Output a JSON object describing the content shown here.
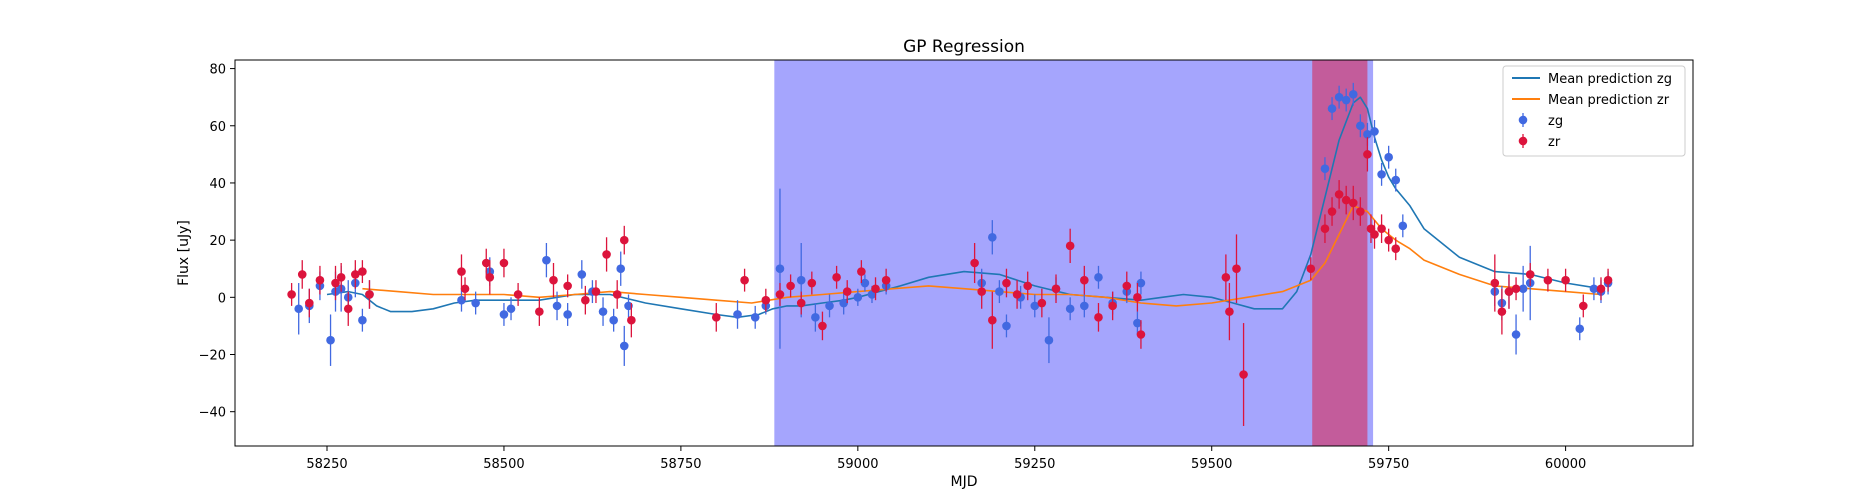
{
  "chart_data": {
    "type": "scatter",
    "title": "GP Regression",
    "xlabel": "MJD",
    "ylabel": "Flux [uJy]",
    "xlim": [
      58120,
      60180
    ],
    "ylim": [
      -52,
      83
    ],
    "xticks": [
      58250,
      58500,
      58750,
      59000,
      59250,
      59500,
      59750,
      60000
    ],
    "yticks": [
      -40,
      -20,
      0,
      20,
      40,
      60,
      80
    ],
    "grid": false,
    "legend_position": "top-right",
    "shaded_regions": [
      {
        "x_start": 58882,
        "x_end": 59728,
        "color": "#a5a5fd"
      },
      {
        "x_start": 59642,
        "x_end": 59720,
        "color": "#c35c9b"
      }
    ],
    "legend": [
      {
        "label": "Mean prediction zg",
        "kind": "line",
        "color": "#1f77b4"
      },
      {
        "label": "Mean prediction zr",
        "kind": "line",
        "color": "#ff7f0e"
      },
      {
        "label": "zg",
        "kind": "errorbar",
        "color": "#4169e1"
      },
      {
        "label": "zr",
        "kind": "errorbar",
        "color": "#dc143c"
      }
    ],
    "series": [
      {
        "name": "Mean prediction zg",
        "kind": "line",
        "color": "#1f77b4",
        "x": [
          58250,
          58280,
          58300,
          58320,
          58340,
          58370,
          58400,
          58430,
          58460,
          58500,
          58550,
          58600,
          58650,
          58700,
          58750,
          58800,
          58830,
          58860,
          58880,
          58900,
          58920,
          58950,
          58980,
          59000,
          59030,
          59060,
          59100,
          59150,
          59200,
          59250,
          59300,
          59350,
          59400,
          59430,
          59460,
          59500,
          59530,
          59560,
          59600,
          59620,
          59640,
          59660,
          59680,
          59700,
          59710,
          59720,
          59730,
          59740,
          59750,
          59760,
          59780,
          59800,
          59850,
          59900,
          59950,
          60000,
          60050
        ],
        "y": [
          1,
          2,
          1,
          -3,
          -5,
          -5,
          -4,
          -2,
          -1,
          -1,
          -1,
          1,
          1,
          -2,
          -4,
          -6,
          -7,
          -6,
          -4,
          -3,
          -3,
          -2,
          -1,
          0,
          2,
          4,
          7,
          9,
          8,
          4,
          1,
          0,
          -1,
          0,
          1,
          0,
          -2,
          -4,
          -4,
          2,
          15,
          35,
          55,
          68,
          70,
          66,
          56,
          48,
          42,
          38,
          32,
          24,
          14,
          9,
          8,
          5,
          3
        ]
      },
      {
        "name": "Mean prediction zr",
        "kind": "line",
        "color": "#ff7f0e",
        "x": [
          58300,
          58350,
          58400,
          58450,
          58500,
          58550,
          58600,
          58650,
          58700,
          58750,
          58800,
          58850,
          58900,
          58950,
          59000,
          59050,
          59100,
          59150,
          59200,
          59250,
          59300,
          59350,
          59400,
          59450,
          59500,
          59550,
          59600,
          59640,
          59660,
          59680,
          59700,
          59720,
          59740,
          59760,
          59780,
          59800,
          59850,
          59900,
          59950,
          60000,
          60050
        ],
        "y": [
          3,
          2,
          1,
          1,
          1,
          0,
          1,
          2,
          1,
          0,
          -1,
          -2,
          0,
          1,
          2,
          3,
          4,
          3,
          2,
          1,
          1,
          0,
          -2,
          -3,
          -2,
          0,
          2,
          6,
          12,
          22,
          32,
          30,
          24,
          20,
          17,
          13,
          8,
          4,
          3,
          2,
          1
        ]
      },
      {
        "name": "zg",
        "kind": "errorbar",
        "color": "#4169e1",
        "x": [
          58210,
          58225,
          58240,
          58255,
          58262,
          58270,
          58280,
          58290,
          58300,
          58310,
          58440,
          58460,
          58480,
          58500,
          58510,
          58560,
          58575,
          58590,
          58610,
          58625,
          58640,
          58655,
          58665,
          58670,
          58676,
          58830,
          58855,
          58870,
          58890,
          58920,
          58940,
          58960,
          58980,
          59000,
          59010,
          59020,
          59040,
          59175,
          59190,
          59200,
          59210,
          59230,
          59250,
          59270,
          59280,
          59300,
          59320,
          59340,
          59360,
          59380,
          59395,
          59400,
          59660,
          59670,
          59680,
          59690,
          59700,
          59710,
          59720,
          59730,
          59740,
          59750,
          59760,
          59770,
          59900,
          59910,
          59920,
          59930,
          59940,
          59950,
          60020,
          60040,
          60050,
          60060
        ],
        "y": [
          -4,
          -3,
          4,
          -15,
          2,
          3,
          0,
          5,
          -8,
          1,
          -1,
          -2,
          9,
          -6,
          -4,
          13,
          -3,
          -6,
          8,
          2,
          -5,
          -8,
          10,
          -17,
          -3,
          -6,
          -7,
          -3,
          10,
          6,
          -7,
          -3,
          -2,
          0,
          5,
          1,
          4,
          5,
          21,
          2,
          -10,
          0,
          -3,
          -15,
          3,
          -4,
          -3,
          7,
          -2,
          2,
          -9,
          5,
          45,
          66,
          70,
          69,
          71,
          60,
          57,
          58,
          43,
          49,
          41,
          25,
          2,
          -2,
          2,
          -13,
          3,
          5,
          -11,
          3,
          2,
          5
        ],
        "err": [
          9,
          6,
          5,
          9,
          7,
          8,
          6,
          5,
          4,
          5,
          4,
          4,
          5,
          4,
          4,
          6,
          5,
          4,
          5,
          4,
          5,
          4,
          6,
          7,
          4,
          5,
          4,
          3,
          28,
          13,
          5,
          4,
          4,
          3,
          3,
          3,
          3,
          5,
          6,
          4,
          4,
          4,
          4,
          8,
          4,
          4,
          4,
          4,
          4,
          4,
          4,
          4,
          4,
          4,
          4,
          4,
          4,
          4,
          4,
          4,
          4,
          4,
          4,
          4,
          5,
          6,
          6,
          7,
          8,
          13,
          4,
          4,
          4,
          4
        ]
      },
      {
        "name": "zr",
        "kind": "errorbar",
        "color": "#dc143c",
        "x": [
          58200,
          58215,
          58225,
          58240,
          58262,
          58270,
          58280,
          58290,
          58300,
          58310,
          58440,
          58445,
          58475,
          58480,
          58500,
          58520,
          58550,
          58570,
          58590,
          58615,
          58630,
          58645,
          58660,
          58670,
          58680,
          58800,
          58840,
          58870,
          58890,
          58905,
          58920,
          58935,
          58950,
          58970,
          58985,
          59005,
          59025,
          59040,
          59165,
          59175,
          59190,
          59210,
          59225,
          59240,
          59260,
          59280,
          59300,
          59320,
          59340,
          59360,
          59380,
          59395,
          59400,
          59520,
          59525,
          59535,
          59545,
          59640,
          59660,
          59670,
          59680,
          59690,
          59700,
          59710,
          59720,
          59725,
          59730,
          59740,
          59750,
          59760,
          59900,
          59910,
          59920,
          59930,
          59950,
          59975,
          60000,
          60025,
          60050,
          60060
        ],
        "y": [
          1,
          8,
          -2,
          6,
          5,
          7,
          -4,
          8,
          9,
          1,
          9,
          3,
          12,
          7,
          12,
          1,
          -5,
          6,
          4,
          -1,
          2,
          15,
          1,
          20,
          -8,
          -7,
          6,
          -1,
          1,
          4,
          -2,
          5,
          -10,
          7,
          2,
          9,
          3,
          6,
          12,
          2,
          -8,
          5,
          1,
          4,
          -2,
          3,
          18,
          6,
          -7,
          -3,
          4,
          0,
          -13,
          7,
          -5,
          10,
          -27,
          10,
          24,
          30,
          36,
          34,
          33,
          30,
          50,
          24,
          22,
          24,
          20,
          17,
          5,
          -5,
          2,
          3,
          8,
          6,
          6,
          -3,
          3,
          6
        ],
        "err": [
          4,
          5,
          5,
          5,
          6,
          5,
          6,
          5,
          4,
          5,
          6,
          4,
          5,
          6,
          5,
          4,
          5,
          6,
          4,
          5,
          4,
          6,
          5,
          5,
          6,
          5,
          4,
          4,
          4,
          4,
          4,
          4,
          5,
          4,
          4,
          4,
          4,
          4,
          7,
          6,
          10,
          5,
          5,
          5,
          5,
          5,
          6,
          5,
          5,
          5,
          5,
          5,
          5,
          8,
          10,
          12,
          18,
          4,
          5,
          5,
          5,
          5,
          6,
          5,
          6,
          5,
          5,
          5,
          4,
          4,
          10,
          8,
          6,
          4,
          4,
          4,
          4,
          4,
          4,
          4
        ]
      }
    ]
  }
}
